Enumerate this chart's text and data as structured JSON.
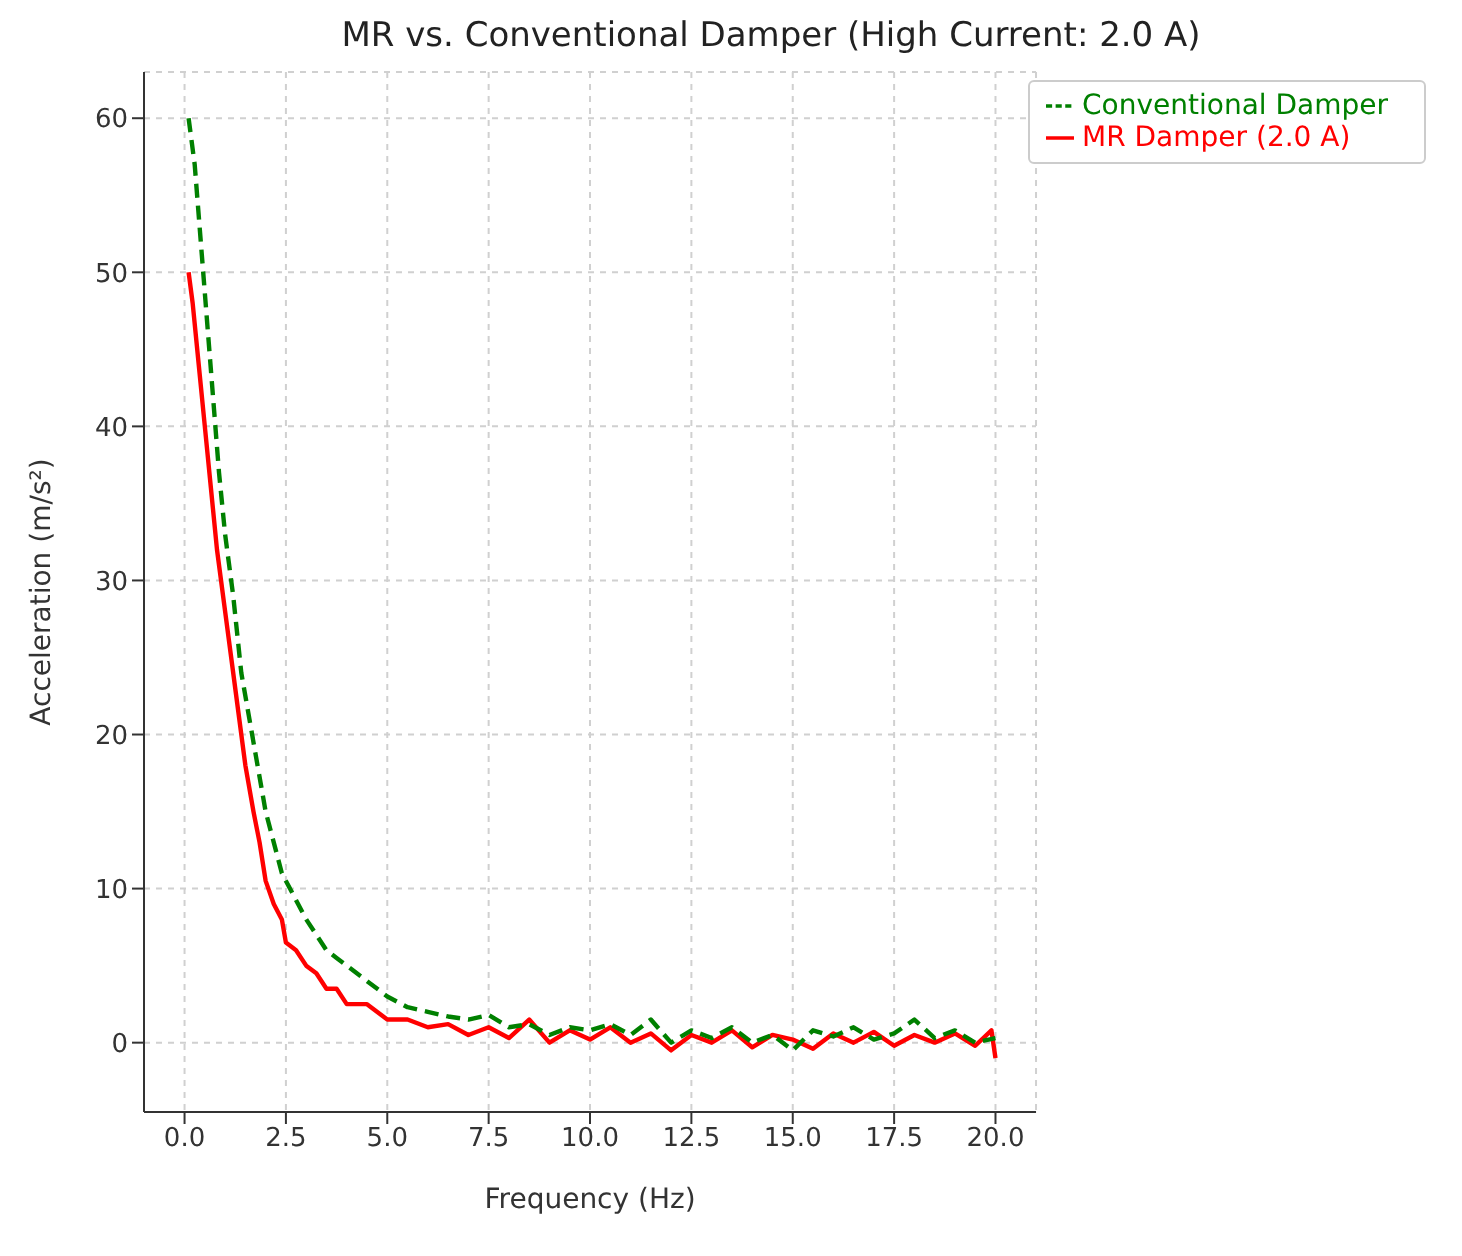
{
  "chart_data": {
    "type": "line",
    "title": "MR vs. Conventional Damper (High Current: 2.0 A)",
    "xlabel": "Frequency (Hz)",
    "ylabel": "Acceleration (m/s²)",
    "xlim": [
      -1,
      21
    ],
    "xticks": [
      {
        "value": 0,
        "label": "0.0"
      },
      {
        "value": 2.5,
        "label": "2.5"
      },
      {
        "value": 5,
        "label": "5.0"
      },
      {
        "value": 7.5,
        "label": "7.5"
      },
      {
        "value": 10,
        "label": "10.0"
      },
      {
        "value": 12.5,
        "label": "12.5"
      },
      {
        "value": 15,
        "label": "15.0"
      },
      {
        "value": 17.5,
        "label": "17.5"
      },
      {
        "value": 20,
        "label": "20.0"
      }
    ],
    "ylim": [
      -4.5,
      63
    ],
    "yticks": [
      0,
      10,
      20,
      30,
      40,
      50,
      60
    ],
    "grid": true,
    "legend": "top right",
    "series": [
      {
        "name": "MR Damper (2.0 A)",
        "color": "#ff0000",
        "line_style": "solid",
        "x": [
          0.1,
          0.2,
          0.35,
          0.5,
          0.65,
          0.8,
          1.0,
          1.2,
          1.35,
          1.5,
          1.7,
          1.85,
          2.0,
          2.2,
          2.4,
          2.5,
          2.75,
          3.0,
          3.25,
          3.5,
          3.75,
          4.0,
          4.5,
          5.0,
          5.5,
          6.0,
          6.5,
          7.0,
          7.5,
          8.0,
          8.5,
          9.0,
          9.5,
          10,
          10.5,
          11,
          11.5,
          12,
          12.5,
          13,
          13.5,
          14,
          14.5,
          15,
          15.5,
          16,
          16.5,
          17,
          17.5,
          18,
          18.5,
          19,
          19.5,
          19.9,
          20
        ],
        "values": [
          50,
          48,
          44,
          40,
          36,
          32,
          28,
          24,
          21,
          18,
          15,
          13,
          10.5,
          9,
          8,
          6.5,
          6,
          5,
          4.5,
          3.5,
          3.5,
          2.5,
          2.5,
          1.5,
          1.5,
          1,
          1.2,
          0.5,
          1,
          0.3,
          1.5,
          0,
          0.8,
          0.2,
          1,
          0,
          0.6,
          -0.5,
          0.5,
          0,
          0.8,
          -0.3,
          0.5,
          0.2,
          -0.4,
          0.6,
          0,
          0.7,
          -0.2,
          0.5,
          0,
          0.6,
          -0.2,
          0.8,
          -1
        ]
      },
      {
        "name": "Conventional Damper",
        "color": "#008000",
        "line_style": "dashed",
        "x": [
          0.1,
          0.25,
          0.4,
          0.55,
          0.7,
          0.85,
          1.0,
          1.2,
          1.4,
          1.6,
          1.8,
          2.0,
          2.2,
          2.4,
          2.6,
          2.8,
          3.0,
          3.25,
          3.5,
          3.75,
          4.0,
          4.5,
          5.0,
          5.5,
          6.0,
          6.5,
          7.0,
          7.5,
          8.0,
          8.5,
          9.0,
          9.5,
          10,
          10.5,
          11,
          11.5,
          12,
          12.5,
          13,
          13.5,
          14,
          14.5,
          15,
          15.5,
          16,
          16.5,
          17,
          17.5,
          18,
          18.5,
          19,
          19.5,
          20
        ],
        "values": [
          60,
          57,
          52,
          47,
          42,
          37,
          33,
          29,
          24,
          21,
          18,
          15,
          13,
          11,
          10,
          9,
          8,
          7,
          6,
          5.5,
          5,
          4,
          3,
          2.3,
          2,
          1.7,
          1.5,
          1.8,
          1,
          1.2,
          0.5,
          1,
          0.8,
          1.2,
          0.5,
          1.5,
          0,
          0.8,
          0.3,
          1,
          0,
          0.5,
          -0.5,
          0.8,
          0.4,
          1,
          0.2,
          0.6,
          1.5,
          0.3,
          0.8,
          0,
          0.3
        ]
      }
    ]
  }
}
